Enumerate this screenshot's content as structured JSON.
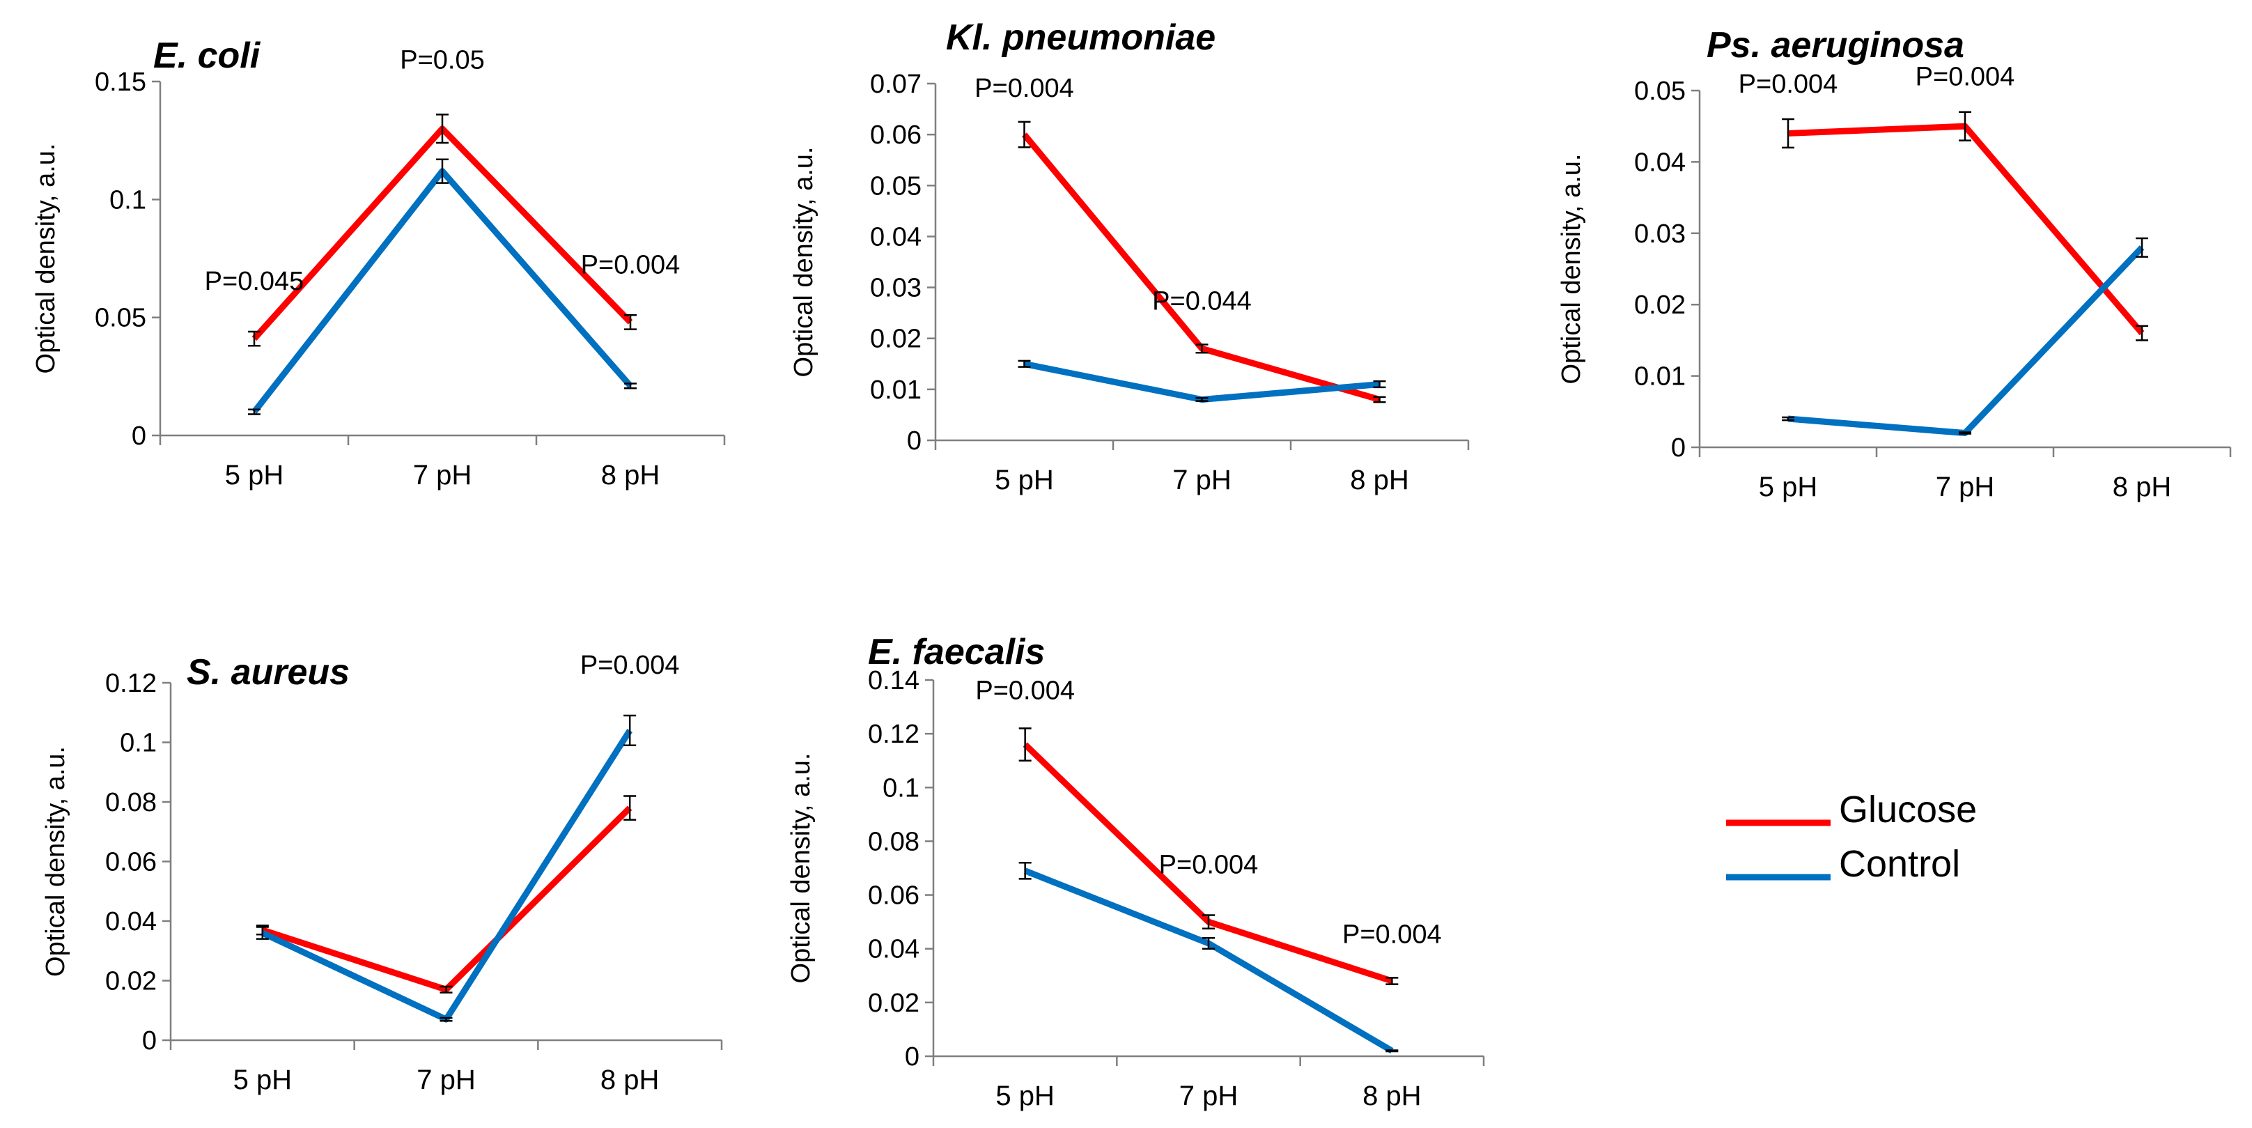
{
  "legend": {
    "entries": [
      {
        "label": "Glucose",
        "color": "#ff0000"
      },
      {
        "label": "Control",
        "color": "#0070c0"
      }
    ]
  },
  "chart_data": [
    {
      "type": "line",
      "title": "E. coli",
      "ylabel": "Optical density, a.u.",
      "categories": [
        "5 pH",
        "7 pH",
        "8 pH"
      ],
      "yticks": [
        "0",
        "0.05",
        "0.1",
        "0.15"
      ],
      "ylim": [
        0,
        0.15
      ],
      "series": [
        {
          "name": "Glucose",
          "color": "#ff0000",
          "values": [
            0.041,
            0.13,
            0.048
          ],
          "errors": [
            0.003,
            0.006,
            0.003
          ]
        },
        {
          "name": "Control",
          "color": "#0070c0",
          "values": [
            0.01,
            0.112,
            0.021
          ],
          "errors": [
            0.001,
            0.005,
            0.001
          ]
        }
      ],
      "annotations": [
        "P=0.045",
        "P=0.05",
        "P=0.004"
      ]
    },
    {
      "type": "line",
      "title": "Kl. pneumoniae",
      "ylabel": "Optical density, a.u.",
      "categories": [
        "5 pH",
        "7 pH",
        "8 pH"
      ],
      "yticks": [
        "0",
        "0.01",
        "0.02",
        "0.03",
        "0.04",
        "0.05",
        "0.06",
        "0.07"
      ],
      "ylim": [
        0,
        0.07
      ],
      "series": [
        {
          "name": "Glucose",
          "color": "#ff0000",
          "values": [
            0.06,
            0.018,
            0.008
          ],
          "errors": [
            0.0025,
            0.0008,
            0.0005
          ]
        },
        {
          "name": "Control",
          "color": "#0070c0",
          "values": [
            0.015,
            0.008,
            0.011
          ],
          "errors": [
            0.0006,
            0.0003,
            0.0006
          ]
        }
      ],
      "annotations": [
        "P=0.004",
        "P=0.044",
        ""
      ]
    },
    {
      "type": "line",
      "title": "Ps. aeruginosa",
      "ylabel": "Optical density, a.u.",
      "categories": [
        "5 pH",
        "7 pH",
        "8 pH"
      ],
      "yticks": [
        "0",
        "0.01",
        "0.02",
        "0.03",
        "0.04",
        "0.05"
      ],
      "ylim": [
        0,
        0.05
      ],
      "series": [
        {
          "name": "Glucose",
          "color": "#ff0000",
          "values": [
            0.044,
            0.045,
            0.016
          ],
          "errors": [
            0.002,
            0.002,
            0.001
          ]
        },
        {
          "name": "Control",
          "color": "#0070c0",
          "values": [
            0.004,
            0.002,
            0.028
          ],
          "errors": [
            0.0002,
            0.0001,
            0.0013
          ]
        }
      ],
      "annotations": [
        "P=0.004",
        "P=0.004",
        ""
      ]
    },
    {
      "type": "line",
      "title": "S. aureus",
      "ylabel": "Optical density, a.u.",
      "categories": [
        "5 pH",
        "7 pH",
        "8 pH"
      ],
      "yticks": [
        "0",
        "0.02",
        "0.04",
        "0.06",
        "0.08",
        "0.1",
        "0.12"
      ],
      "ylim": [
        0,
        0.12
      ],
      "series": [
        {
          "name": "Glucose",
          "color": "#ff0000",
          "values": [
            0.037,
            0.017,
            0.078
          ],
          "errors": [
            0.0015,
            0.001,
            0.004
          ]
        },
        {
          "name": "Control",
          "color": "#0070c0",
          "values": [
            0.036,
            0.007,
            0.104
          ],
          "errors": [
            0.002,
            0.0005,
            0.005
          ]
        }
      ],
      "annotations": [
        "",
        "",
        "P=0.004"
      ]
    },
    {
      "type": "line",
      "title": "E. faecalis",
      "ylabel": "Optical density, a.u.",
      "categories": [
        "5 pH",
        "7 pH",
        "8 pH"
      ],
      "yticks": [
        "0",
        "0.02",
        "0.04",
        "0.06",
        "0.08",
        "0.1",
        "0.12",
        "0.14"
      ],
      "ylim": [
        0,
        0.14
      ],
      "series": [
        {
          "name": "Glucose",
          "color": "#ff0000",
          "values": [
            0.116,
            0.05,
            0.028
          ],
          "errors": [
            0.006,
            0.0025,
            0.0012
          ]
        },
        {
          "name": "Control",
          "color": "#0070c0",
          "values": [
            0.069,
            0.042,
            0.002
          ],
          "errors": [
            0.003,
            0.002,
            0.0002
          ]
        }
      ],
      "annotations": [
        "P=0.004",
        "P=0.004",
        "P=0.004"
      ]
    }
  ]
}
